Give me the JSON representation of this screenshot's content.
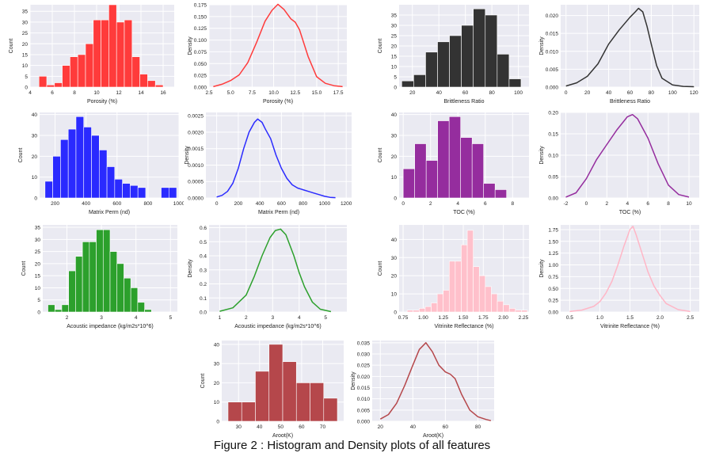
{
  "caption": "Figure 2 : Histogram and Density plots of all features",
  "chart_data": [
    {
      "type": "bar",
      "color": "#ff3b3b",
      "xlabel": "Porosity (%)",
      "ylabel": "Count",
      "xlim": [
        4,
        17
      ],
      "ylim": [
        0,
        38
      ],
      "xticks": [
        4,
        6,
        8,
        10,
        12,
        14,
        16
      ],
      "yticks": [
        0,
        5,
        10,
        15,
        20,
        25,
        30,
        35
      ],
      "bin_edges": [
        4.8,
        5.5,
        6.2,
        6.9,
        7.6,
        8.3,
        9.0,
        9.7,
        10.4,
        11.1,
        11.8,
        12.5,
        13.2,
        13.9,
        14.6,
        15.3,
        16.0
      ],
      "values": [
        5,
        1,
        2,
        10,
        14,
        15,
        20,
        31,
        31,
        38,
        30,
        31,
        14,
        6,
        3,
        1
      ]
    },
    {
      "type": "line",
      "color": "#ff3b3b",
      "xlabel": "Porosity (%)",
      "ylabel": "Density",
      "xlim": [
        2.5,
        18.5
      ],
      "ylim": [
        0,
        0.175
      ],
      "xticks": [
        2.5,
        5.0,
        7.5,
        10.0,
        12.5,
        15.0,
        17.5
      ],
      "yticks": [
        0,
        0.025,
        0.05,
        0.075,
        0.1,
        0.125,
        0.15,
        0.175
      ],
      "tick_decimals": [
        1,
        3
      ],
      "x": [
        3.0,
        4.0,
        5.0,
        6.0,
        7.0,
        8.0,
        9.0,
        9.8,
        10.5,
        11.2,
        12.0,
        12.5,
        13.0,
        14.0,
        15.0,
        16.0,
        17.0,
        18.0
      ],
      "y": [
        0.001,
        0.006,
        0.014,
        0.026,
        0.052,
        0.094,
        0.14,
        0.163,
        0.176,
        0.165,
        0.145,
        0.138,
        0.122,
        0.065,
        0.022,
        0.008,
        0.003,
        0.001
      ]
    },
    {
      "type": "bar",
      "color": "#333333",
      "xlabel": "Brittleness Ratio",
      "ylabel": "Count",
      "xlim": [
        10,
        108
      ],
      "ylim": [
        0,
        40
      ],
      "xticks": [
        20,
        40,
        60,
        80,
        100
      ],
      "yticks": [
        0,
        5,
        10,
        15,
        20,
        25,
        30,
        35
      ],
      "bin_edges": [
        12,
        21,
        30,
        39,
        48,
        57,
        66,
        75,
        84,
        93,
        102
      ],
      "values": [
        3,
        6,
        17,
        22,
        25,
        30,
        38,
        35,
        16,
        4
      ]
    },
    {
      "type": "line",
      "color": "#333333",
      "xlabel": "Brittleness Ratio",
      "ylabel": "Density",
      "xlim": [
        -5,
        125
      ],
      "ylim": [
        0,
        0.023
      ],
      "xticks": [
        0,
        20,
        40,
        60,
        80,
        100,
        120
      ],
      "yticks": [
        0,
        0.005,
        0.01,
        0.015,
        0.02
      ],
      "tick_decimals": [
        0,
        3
      ],
      "x": [
        0,
        10,
        20,
        30,
        40,
        50,
        60,
        65,
        68,
        72,
        76,
        80,
        85,
        90,
        100,
        110,
        120
      ],
      "y": [
        0.0003,
        0.0012,
        0.003,
        0.0065,
        0.012,
        0.016,
        0.0195,
        0.021,
        0.022,
        0.021,
        0.017,
        0.012,
        0.006,
        0.0025,
        0.0006,
        0.0002,
        0.0001
      ]
    },
    {
      "type": "bar",
      "color": "#2a2aff",
      "xlabel": "Matrix Perm (nd)",
      "ylabel": "Count",
      "xlim": [
        100,
        1000
      ],
      "ylim": [
        0,
        41
      ],
      "xticks": [
        200,
        400,
        600,
        800,
        1000
      ],
      "yticks": [
        0,
        10,
        20,
        30,
        40
      ],
      "bin_edges": [
        135,
        185,
        235,
        285,
        335,
        385,
        435,
        485,
        535,
        585,
        635,
        685,
        735,
        785,
        835,
        885,
        935,
        985
      ],
      "values": [
        8,
        20,
        28,
        33,
        39,
        34,
        30,
        23,
        15,
        9,
        7,
        6,
        5,
        0,
        0,
        5,
        5
      ]
    },
    {
      "type": "line",
      "color": "#2a2aff",
      "xlabel": "Matrix Perm (nd)",
      "ylabel": "Density",
      "xlim": [
        -100,
        1250
      ],
      "ylim": [
        0,
        0.0026
      ],
      "xticks": [
        0,
        200,
        400,
        600,
        800,
        1000,
        1200
      ],
      "yticks": [
        0,
        0.0005,
        0.001,
        0.0015,
        0.002,
        0.0025
      ],
      "tick_decimals": [
        0,
        4
      ],
      "x": [
        0,
        50,
        100,
        150,
        200,
        250,
        300,
        350,
        380,
        420,
        450,
        500,
        550,
        600,
        650,
        700,
        750,
        800,
        850,
        900,
        950,
        1000,
        1050,
        1100
      ],
      "y": [
        3e-05,
        8e-05,
        0.0002,
        0.00045,
        0.0009,
        0.0015,
        0.002,
        0.0023,
        0.0024,
        0.0023,
        0.0021,
        0.0018,
        0.0013,
        0.0009,
        0.0006,
        0.0004,
        0.0003,
        0.00025,
        0.0002,
        0.00015,
        0.0001,
        5e-05,
        2e-05,
        1e-05
      ]
    },
    {
      "type": "bar",
      "color": "#952d9e",
      "xlabel": "TOC (%)",
      "ylabel": "Count",
      "xlim": [
        -0.3,
        9.2
      ],
      "ylim": [
        0,
        41
      ],
      "xticks": [
        0,
        2,
        4,
        6,
        8
      ],
      "yticks": [
        0,
        10,
        20,
        30,
        40
      ],
      "bin_edges": [
        0.0,
        0.84,
        1.68,
        2.52,
        3.36,
        4.2,
        5.04,
        5.88,
        6.72,
        7.56,
        8.4
      ],
      "values": [
        14,
        26,
        18,
        37,
        39,
        29,
        26,
        7,
        4,
        0
      ]
    },
    {
      "type": "line",
      "color": "#952d9e",
      "xlabel": "TOC (%)",
      "ylabel": "Density",
      "xlim": [
        -2.5,
        11
      ],
      "ylim": [
        0,
        0.2
      ],
      "xticks": [
        -2,
        0,
        2,
        4,
        6,
        8,
        10
      ],
      "yticks": [
        0,
        0.05,
        0.1,
        0.15,
        0.2
      ],
      "tick_decimals": [
        0,
        2
      ],
      "x": [
        -2,
        -1,
        0,
        1,
        2,
        3,
        4,
        4.5,
        5,
        6,
        7,
        8,
        9,
        10
      ],
      "y": [
        0.002,
        0.012,
        0.045,
        0.09,
        0.125,
        0.16,
        0.19,
        0.195,
        0.185,
        0.14,
        0.08,
        0.03,
        0.008,
        0.002
      ]
    },
    {
      "type": "bar",
      "color": "#2ca02c",
      "xlabel": "Acoustic impedance (kg/m2s*10^6)",
      "ylabel": "Count",
      "xlim": [
        1.3,
        5.2
      ],
      "ylim": [
        0,
        36
      ],
      "xticks": [
        2,
        3,
        4,
        5
      ],
      "yticks": [
        0,
        5,
        10,
        15,
        20,
        25,
        30,
        35
      ],
      "bin_edges": [
        1.45,
        1.65,
        1.85,
        2.05,
        2.25,
        2.45,
        2.65,
        2.85,
        3.05,
        3.25,
        3.45,
        3.65,
        3.85,
        4.05,
        4.25,
        4.45,
        4.65
      ],
      "values": [
        3,
        1,
        3,
        17,
        23,
        29,
        29,
        34,
        34,
        25,
        20,
        14,
        10,
        4,
        1,
        0
      ]
    },
    {
      "type": "line",
      "color": "#2ca02c",
      "xlabel": "Acoustic impedance (kg/m2s*10^6)",
      "ylabel": "Density",
      "xlim": [
        0.6,
        5.8
      ],
      "ylim": [
        0,
        0.62
      ],
      "xticks": [
        1,
        2,
        3,
        4,
        5
      ],
      "yticks": [
        0,
        0.1,
        0.2,
        0.3,
        0.4,
        0.5,
        0.6
      ],
      "tick_decimals": [
        0,
        1
      ],
      "x": [
        1.0,
        1.5,
        2.0,
        2.3,
        2.6,
        2.9,
        3.1,
        3.3,
        3.5,
        3.8,
        4.0,
        4.2,
        4.5,
        4.8,
        5.2
      ],
      "y": [
        0.005,
        0.03,
        0.12,
        0.25,
        0.4,
        0.53,
        0.58,
        0.59,
        0.55,
        0.4,
        0.28,
        0.18,
        0.07,
        0.02,
        0.003
      ]
    },
    {
      "type": "bar",
      "color": "#ffc0cb",
      "xlabel": "Vitrinite Reflectance (%)",
      "ylabel": "Count",
      "xlim": [
        0.7,
        2.32
      ],
      "ylim": [
        0,
        48
      ],
      "xticks": [
        0.75,
        1.0,
        1.25,
        1.5,
        1.75,
        2.0,
        2.25
      ],
      "yticks": [
        0,
        10,
        20,
        30,
        40
      ],
      "tick_decimals": [
        2,
        0
      ],
      "bin_edges": [
        0.8,
        0.875,
        0.95,
        1.025,
        1.1,
        1.175,
        1.25,
        1.325,
        1.4,
        1.475,
        1.55,
        1.625,
        1.7,
        1.775,
        1.85,
        1.925,
        2.0,
        2.075,
        2.15,
        2.225,
        2.3
      ],
      "values": [
        1,
        1,
        2,
        3,
        5,
        10,
        12,
        28,
        28,
        37,
        45,
        25,
        20,
        14,
        10,
        6,
        4,
        2,
        1,
        1
      ]
    },
    {
      "type": "line",
      "color": "#ffb6c6",
      "xlabel": "Vitrinite Reflectance (%)",
      "ylabel": "Density",
      "xlim": [
        0.35,
        2.65
      ],
      "ylim": [
        0,
        1.85
      ],
      "xticks": [
        0.5,
        1.0,
        1.5,
        2.0,
        2.5
      ],
      "yticks": [
        0,
        0.25,
        0.5,
        0.75,
        1.0,
        1.25,
        1.5,
        1.75
      ],
      "tick_decimals": [
        1,
        2
      ],
      "x": [
        0.5,
        0.7,
        0.9,
        1.0,
        1.1,
        1.2,
        1.3,
        1.4,
        1.5,
        1.55,
        1.6,
        1.7,
        1.8,
        1.9,
        2.0,
        2.1,
        2.3,
        2.5
      ],
      "y": [
        0.01,
        0.04,
        0.12,
        0.22,
        0.4,
        0.65,
        1.0,
        1.4,
        1.75,
        1.82,
        1.65,
        1.25,
        0.85,
        0.55,
        0.35,
        0.18,
        0.05,
        0.01
      ]
    },
    {
      "type": "bar",
      "color": "#b5474b",
      "xlabel": "Aroot(K)",
      "ylabel": "Count",
      "xlim": [
        22,
        80
      ],
      "ylim": [
        0,
        42
      ],
      "xticks": [
        30,
        40,
        50,
        60,
        70
      ],
      "yticks": [
        0,
        10,
        20,
        30,
        40
      ],
      "bin_edges": [
        25,
        31.5,
        38,
        44.5,
        51,
        57.5,
        64,
        70.5,
        77
      ],
      "values": [
        10,
        10,
        26,
        40,
        31,
        20,
        20,
        12,
        5
      ]
    },
    {
      "type": "line",
      "color": "#b5474b",
      "xlabel": "Aroot(K)",
      "ylabel": "Density",
      "xlim": [
        15,
        90
      ],
      "ylim": [
        0,
        0.036
      ],
      "xticks": [
        20,
        40,
        60,
        80
      ],
      "yticks": [
        0,
        0.005,
        0.01,
        0.015,
        0.02,
        0.025,
        0.03,
        0.035
      ],
      "tick_decimals": [
        0,
        3
      ],
      "x": [
        20,
        25,
        30,
        35,
        40,
        44,
        48,
        52,
        56,
        60,
        63,
        66,
        70,
        75,
        80,
        85,
        88
      ],
      "y": [
        0.001,
        0.003,
        0.008,
        0.016,
        0.025,
        0.032,
        0.035,
        0.031,
        0.025,
        0.022,
        0.021,
        0.019,
        0.012,
        0.005,
        0.002,
        0.0008,
        0.0003
      ]
    }
  ]
}
